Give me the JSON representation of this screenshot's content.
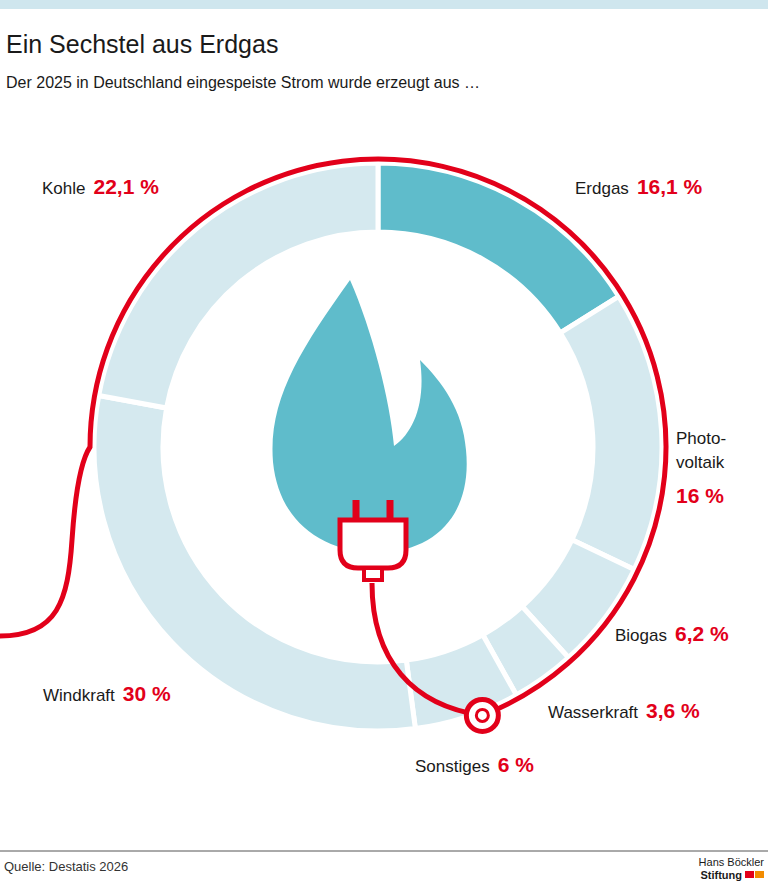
{
  "chart_data": {
    "type": "pie",
    "title": "Ein Sechstel aus Erdgas",
    "subtitle": "Der 2025 in Deutschland eingespeiste Strom wurde erzeugt aus …",
    "categories": [
      "Erdgas",
      "Photo-voltaik",
      "Biogas",
      "Wasserkraft",
      "Sonstiges",
      "Windkraft",
      "Kohle"
    ],
    "values": [
      16.1,
      16,
      6.2,
      3.6,
      6,
      30,
      22.1
    ],
    "value_labels": [
      "16,1 %",
      "16 %",
      "6,2 %",
      "3,6 %",
      "6 %",
      "30 %",
      "22,1 %"
    ],
    "colors": [
      "#5fbccb",
      "#d5e9ef",
      "#d5e9ef",
      "#d5e9ef",
      "#d5e9ef",
      "#d5e9ef",
      "#d5e9ef"
    ],
    "data_labels": true,
    "source": "Quelle: Destatis 2026",
    "logo": [
      "Hans Böckler",
      "Stiftung"
    ]
  }
}
